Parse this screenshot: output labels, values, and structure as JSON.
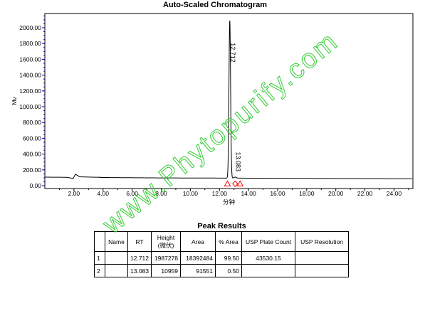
{
  "chart_data": {
    "type": "line",
    "title": "Auto-Scaled Chromatogram",
    "xlabel": "分钟",
    "ylabel": "Mv",
    "xlim": [
      0,
      25.3
    ],
    "ylim": [
      0,
      2180
    ],
    "x_ticks": [
      "2.00",
      "4.00",
      "6.00",
      "8.00",
      "10.00",
      "12.00",
      "14.00",
      "16.00",
      "18.00",
      "20.00",
      "22.00",
      "24.00"
    ],
    "y_ticks": [
      "0.00",
      "200.00",
      "400.00",
      "600.00",
      "800.00",
      "1000.00",
      "1200.00",
      "1400.00",
      "1600.00",
      "1800.00",
      "2000.00"
    ],
    "grid": false,
    "baseline": [
      [
        0,
        108
      ],
      [
        1.5,
        106
      ],
      [
        1.95,
        92
      ],
      [
        2.1,
        145
      ],
      [
        2.4,
        112
      ],
      [
        3.7,
        106
      ],
      [
        3.75,
        110
      ],
      [
        3.8,
        104
      ],
      [
        8,
        98
      ],
      [
        12.4,
        96
      ],
      [
        14,
        95
      ],
      [
        18,
        92
      ],
      [
        24,
        88
      ],
      [
        25.3,
        87
      ]
    ],
    "peaks": [
      {
        "label": "12.712",
        "rt": 12.712,
        "apex": 2090,
        "width": 0.055
      },
      {
        "label": "13.083",
        "rt": 13.083,
        "apex": 108,
        "width": 0.08
      }
    ],
    "markers": [
      12.55,
      13.083,
      13.42
    ]
  },
  "peak_results": {
    "title": "Peak Results",
    "headers": [
      "",
      "Name",
      "RT",
      "Height\n(微伏)",
      "Area",
      "% Area",
      "USP Plate Count",
      "USP Resolution"
    ],
    "rows": [
      [
        "1",
        "",
        "12.712",
        "1987278",
        "18392484",
        "99.50",
        "43530.15",
        ""
      ],
      [
        "2",
        "",
        "13.083",
        "10959",
        "91551",
        "0.50",
        "",
        ""
      ]
    ]
  },
  "watermark": "www.Phytopurify.com",
  "colors": {
    "trace": "#000000",
    "marker": "#ff0000",
    "axis_tick": "#0000cc",
    "watermark": "#33cc33"
  }
}
